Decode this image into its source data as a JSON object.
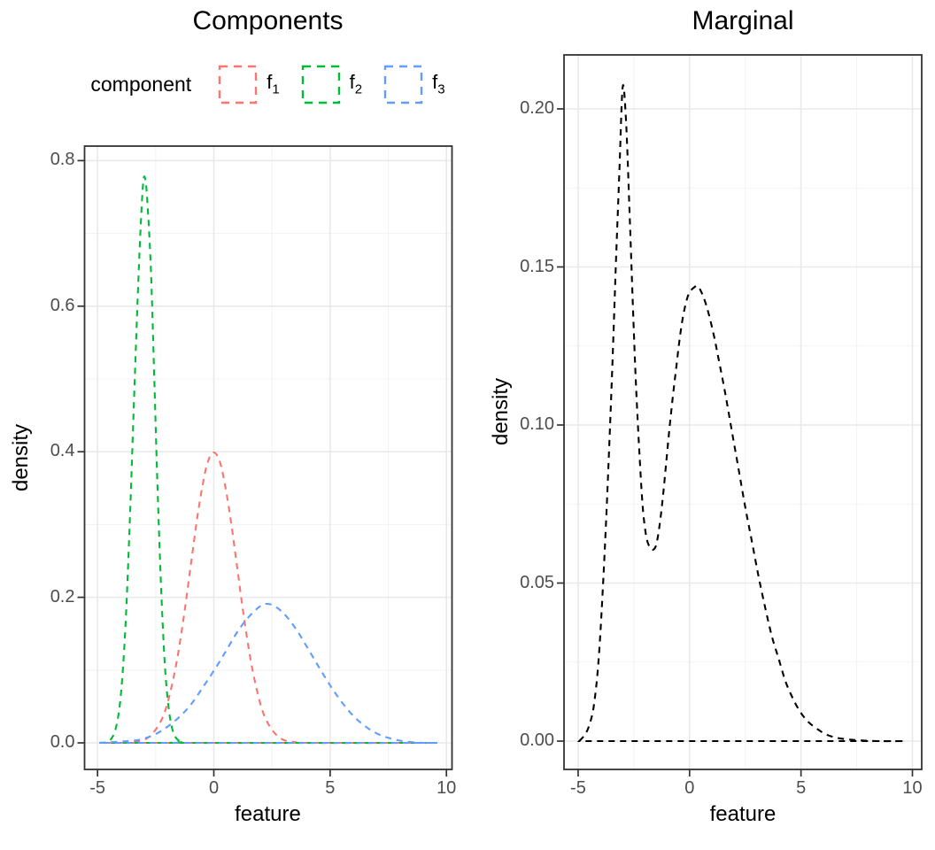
{
  "page": {
    "background": "#ffffff"
  },
  "chart_data": [
    {
      "type": "line",
      "title": "Components",
      "xlabel": "feature",
      "ylabel": "density",
      "x_ticks": {
        "values": [
          -5,
          0,
          5,
          10
        ],
        "labels": [
          "-5",
          "0",
          "5",
          "10"
        ]
      },
      "y_ticks": {
        "values": [
          0,
          0.2,
          0.4,
          0.6,
          0.8
        ],
        "labels": [
          "0.0",
          "0.2",
          "0.4",
          "0.6",
          "0.8"
        ]
      },
      "xlim": [
        -5.6,
        10.3
      ],
      "ylim": [
        -0.038,
        0.82
      ],
      "grid": "major+minor",
      "panel_border": true,
      "line_style": "dashed",
      "legend": {
        "position": "top",
        "title": "component",
        "items": [
          {
            "label_base": "f",
            "label_sub": "1",
            "color": "#F8766D",
            "series": "f1"
          },
          {
            "label_base": "f",
            "label_sub": "2",
            "color": "#00BA38",
            "series": "f2"
          },
          {
            "label_base": "f",
            "label_sub": "3",
            "color": "#619CFF",
            "series": "f3"
          }
        ]
      },
      "series": [
        {
          "name": "f1",
          "color": "#F8766D",
          "points": [
            [
              -4.92,
              0
            ],
            [
              -4,
              0
            ],
            [
              -3.5,
              0.001
            ],
            [
              -3,
              0.004
            ],
            [
              -2.6,
              0.014
            ],
            [
              -2.2,
              0.035
            ],
            [
              -1.9,
              0.066
            ],
            [
              -1.6,
              0.111
            ],
            [
              -1.3,
              0.171
            ],
            [
              -1,
              0.242
            ],
            [
              -0.7,
              0.312
            ],
            [
              -0.4,
              0.368
            ],
            [
              -0.2,
              0.391
            ],
            [
              0,
              0.399
            ],
            [
              0.2,
              0.391
            ],
            [
              0.4,
              0.368
            ],
            [
              0.7,
              0.312
            ],
            [
              1,
              0.242
            ],
            [
              1.3,
              0.171
            ],
            [
              1.6,
              0.111
            ],
            [
              1.9,
              0.066
            ],
            [
              2.2,
              0.035
            ],
            [
              2.6,
              0.014
            ],
            [
              3,
              0.004
            ],
            [
              3.5,
              0.001
            ],
            [
              4,
              0
            ],
            [
              9.6,
              0
            ]
          ]
        },
        {
          "name": "f2",
          "color": "#00BA38",
          "points": [
            [
              -4.92,
              0
            ],
            [
              -4.6,
              0.001
            ],
            [
              -4.4,
              0.006
            ],
            [
              -4.2,
              0.022
            ],
            [
              -4,
              0.065
            ],
            [
              -3.8,
              0.16
            ],
            [
              -3.6,
              0.315
            ],
            [
              -3.4,
              0.5
            ],
            [
              -3.2,
              0.67
            ],
            [
              -3.05,
              0.765
            ],
            [
              -2.95,
              0.775
            ],
            [
              -2.85,
              0.74
            ],
            [
              -2.7,
              0.645
            ],
            [
              -2.55,
              0.49
            ],
            [
              -2.4,
              0.33
            ],
            [
              -2.25,
              0.2
            ],
            [
              -2.1,
              0.105
            ],
            [
              -1.95,
              0.05
            ],
            [
              -1.8,
              0.021
            ],
            [
              -1.65,
              0.008
            ],
            [
              -1.5,
              0.003
            ],
            [
              -1.3,
              0.001
            ],
            [
              -1,
              0
            ],
            [
              9.6,
              0
            ]
          ]
        },
        {
          "name": "f3",
          "color": "#619CFF",
          "points": [
            [
              -4.92,
              0
            ],
            [
              -3.5,
              0.003
            ],
            [
              -3,
              0.006
            ],
            [
              -2.5,
              0.012
            ],
            [
              -2,
              0.022
            ],
            [
              -1.5,
              0.035
            ],
            [
              -1,
              0.052
            ],
            [
              -0.5,
              0.075
            ],
            [
              0,
              0.099
            ],
            [
              0.5,
              0.125
            ],
            [
              1,
              0.152
            ],
            [
              1.5,
              0.173
            ],
            [
              2,
              0.188
            ],
            [
              2.3,
              0.191
            ],
            [
              2.6,
              0.188
            ],
            [
              3,
              0.178
            ],
            [
              3.5,
              0.158
            ],
            [
              4,
              0.132
            ],
            [
              4.5,
              0.105
            ],
            [
              5,
              0.079
            ],
            [
              5.5,
              0.056
            ],
            [
              6,
              0.037
            ],
            [
              6.5,
              0.023
            ],
            [
              7,
              0.013
            ],
            [
              7.5,
              0.007
            ],
            [
              8,
              0.003
            ],
            [
              8.5,
              0.001
            ],
            [
              9,
              0
            ],
            [
              9.6,
              0
            ]
          ]
        }
      ]
    },
    {
      "type": "line",
      "title": "Marginal",
      "xlabel": "feature",
      "ylabel": "density",
      "x_ticks": {
        "values": [
          -5,
          0,
          5,
          10
        ],
        "labels": [
          "-5",
          "0",
          "5",
          "10"
        ]
      },
      "y_ticks": {
        "values": [
          0,
          0.05,
          0.1,
          0.15,
          0.2
        ],
        "labels": [
          "0.00",
          "0.05",
          "0.10",
          "0.15",
          "0.20"
        ]
      },
      "xlim": [
        -5.6,
        10.4
      ],
      "ylim": [
        -0.009,
        0.217
      ],
      "grid": "major+minor",
      "panel_border": true,
      "line_style": "dashed",
      "legend": null,
      "series": [
        {
          "name": "marginal",
          "color": "#000000",
          "points": [
            [
              -4.95,
              0
            ],
            [
              -4.7,
              0.002
            ],
            [
              -4.5,
              0.005
            ],
            [
              -4.3,
              0.011
            ],
            [
              -4.1,
              0.024
            ],
            [
              -3.9,
              0.047
            ],
            [
              -3.7,
              0.077
            ],
            [
              -3.5,
              0.112
            ],
            [
              -3.3,
              0.152
            ],
            [
              -3.15,
              0.18
            ],
            [
              -3,
              0.207
            ],
            [
              -2.85,
              0.196
            ],
            [
              -2.7,
              0.169
            ],
            [
              -2.55,
              0.139
            ],
            [
              -2.4,
              0.112
            ],
            [
              -2.25,
              0.091
            ],
            [
              -2.1,
              0.074
            ],
            [
              -1.95,
              0.065
            ],
            [
              -1.8,
              0.0615
            ],
            [
              -1.65,
              0.0605
            ],
            [
              -1.5,
              0.062
            ],
            [
              -1.35,
              0.068
            ],
            [
              -1.2,
              0.077
            ],
            [
              -1.05,
              0.088
            ],
            [
              -0.9,
              0.099
            ],
            [
              -0.75,
              0.109
            ],
            [
              -0.6,
              0.118
            ],
            [
              -0.45,
              0.127
            ],
            [
              -0.3,
              0.134
            ],
            [
              -0.15,
              0.139
            ],
            [
              0,
              0.142
            ],
            [
              0.2,
              0.1435
            ],
            [
              0.35,
              0.144
            ],
            [
              0.5,
              0.1425
            ],
            [
              0.7,
              0.139
            ],
            [
              0.9,
              0.134
            ],
            [
              1.1,
              0.128
            ],
            [
              1.3,
              0.121
            ],
            [
              1.6,
              0.11
            ],
            [
              1.9,
              0.098
            ],
            [
              2.2,
              0.086
            ],
            [
              2.5,
              0.074
            ],
            [
              2.8,
              0.063
            ],
            [
              3.1,
              0.052
            ],
            [
              3.4,
              0.042
            ],
            [
              3.7,
              0.033
            ],
            [
              4,
              0.026
            ],
            [
              4.3,
              0.019
            ],
            [
              4.6,
              0.014
            ],
            [
              4.9,
              0.01
            ],
            [
              5.2,
              0.007
            ],
            [
              5.5,
              0.005
            ],
            [
              5.8,
              0.0035
            ],
            [
              6.1,
              0.0022
            ],
            [
              6.5,
              0.0012
            ],
            [
              7,
              0.0006
            ],
            [
              7.5,
              0.0003
            ],
            [
              8,
              0.0001
            ],
            [
              8.5,
              0
            ],
            [
              9.65,
              0
            ]
          ]
        }
      ]
    }
  ],
  "style": {
    "grid_major_color": "#e9e9e9",
    "grid_minor_color": "#f3f3f3",
    "panel_border_color": "#333333",
    "tick_color": "#333333",
    "tick_label_color": "#4d4d4d"
  }
}
